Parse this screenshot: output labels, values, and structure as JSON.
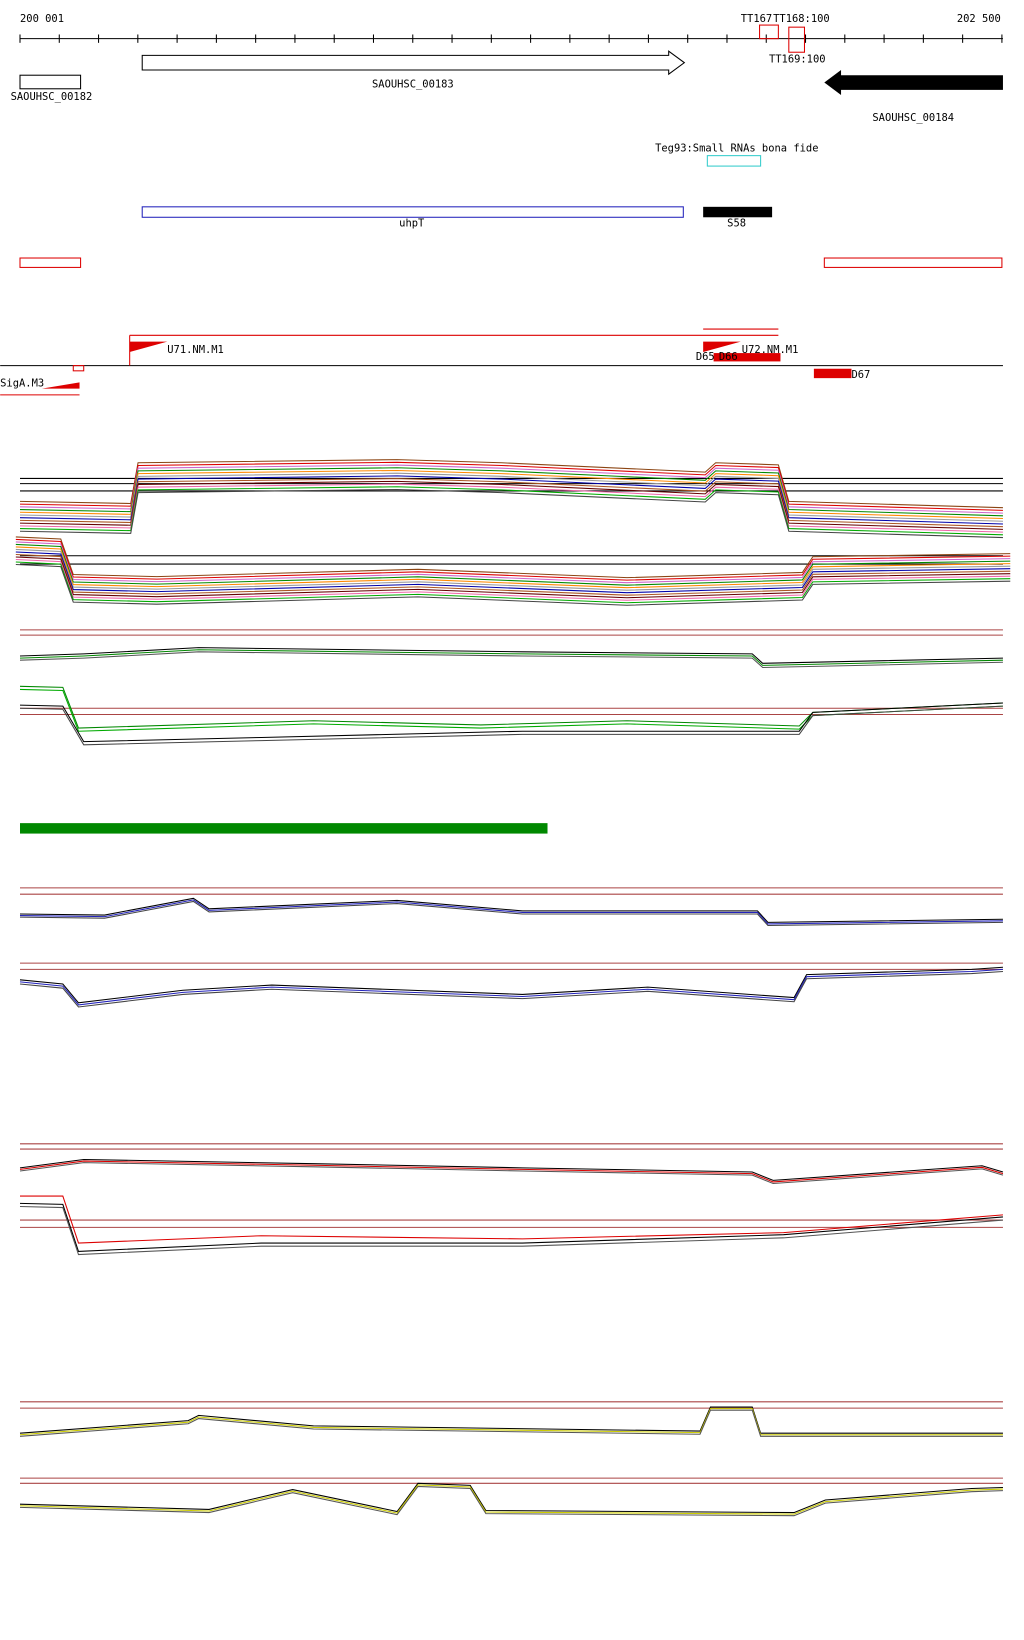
{
  "ruler": {
    "start": "200 001",
    "end": "202 500"
  },
  "terminators": [
    "TT167",
    "TT168:100",
    "TT169:100"
  ],
  "genes": [
    "SAOUHSC_00182",
    "SAOUHSC_00183",
    "SAOUHSC_00184"
  ],
  "small_rna": {
    "track": "Teg93:Small RNAs bona fide",
    "features": [
      "uhpT",
      "S58"
    ]
  },
  "motifs": [
    "U71.NM.M1",
    "U72.NM.M1",
    "D65",
    "D66",
    "D67",
    "SigA.M3"
  ]
}
